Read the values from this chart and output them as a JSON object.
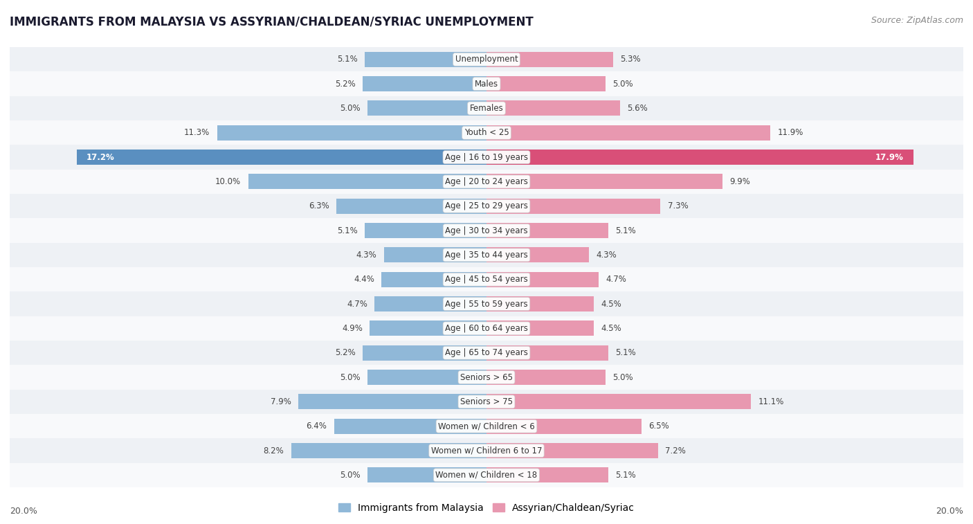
{
  "title": "IMMIGRANTS FROM MALAYSIA VS ASSYRIAN/CHALDEAN/SYRIAC UNEMPLOYMENT",
  "source": "Source: ZipAtlas.com",
  "categories": [
    "Unemployment",
    "Males",
    "Females",
    "Youth < 25",
    "Age | 16 to 19 years",
    "Age | 20 to 24 years",
    "Age | 25 to 29 years",
    "Age | 30 to 34 years",
    "Age | 35 to 44 years",
    "Age | 45 to 54 years",
    "Age | 55 to 59 years",
    "Age | 60 to 64 years",
    "Age | 65 to 74 years",
    "Seniors > 65",
    "Seniors > 75",
    "Women w/ Children < 6",
    "Women w/ Children 6 to 17",
    "Women w/ Children < 18"
  ],
  "malaysia_values": [
    5.1,
    5.2,
    5.0,
    11.3,
    17.2,
    10.0,
    6.3,
    5.1,
    4.3,
    4.4,
    4.7,
    4.9,
    5.2,
    5.0,
    7.9,
    6.4,
    8.2,
    5.0
  ],
  "assyrian_values": [
    5.3,
    5.0,
    5.6,
    11.9,
    17.9,
    9.9,
    7.3,
    5.1,
    4.3,
    4.7,
    4.5,
    4.5,
    5.1,
    5.0,
    11.1,
    6.5,
    7.2,
    5.1
  ],
  "malaysia_color": "#90b8d8",
  "assyrian_color": "#e898b0",
  "malaysia_highlight_color": "#5a8fc0",
  "assyrian_highlight_color": "#d94f78",
  "row_odd_color": "#eef1f5",
  "row_even_color": "#f8f9fb",
  "xlim": 20.0,
  "legend_malaysia": "Immigrants from Malaysia",
  "legend_assyrian": "Assyrian/Chaldean/Syriac",
  "bar_height": 0.62,
  "title_fontsize": 12,
  "label_fontsize": 8.5,
  "value_fontsize": 8.5,
  "source_fontsize": 9
}
